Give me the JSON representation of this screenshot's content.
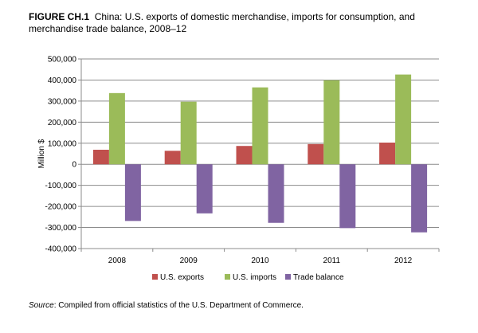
{
  "title": {
    "prefix": "FIGURE CH.1",
    "text": "China: U.S. exports of domestic merchandise, imports for consumption, and merchandise trade balance, 2008–12"
  },
  "source": {
    "label": "Source",
    "text": ": Compiled from official statistics of the U.S. Department of Commerce."
  },
  "chart_data": {
    "type": "bar",
    "title": "China: U.S. exports of domestic merchandise, imports for consumption, and merchandise trade balance, 2008–12",
    "xlabel": "",
    "ylabel": "Million $",
    "categories": [
      "2008",
      "2009",
      "2010",
      "2011",
      "2012"
    ],
    "series": [
      {
        "name": "U.S. exports",
        "color": "#C0504D",
        "values": [
          69000,
          64000,
          87000,
          96000,
          103000
        ]
      },
      {
        "name": "U.S. imports",
        "color": "#9BBB59",
        "values": [
          338000,
          297000,
          365000,
          399000,
          426000
        ]
      },
      {
        "name": "Trade balance",
        "color": "#8064A2",
        "values": [
          -269000,
          -233000,
          -278000,
          -303000,
          -323000
        ]
      }
    ],
    "ylim": [
      -400000,
      500000
    ],
    "yticks": [
      -400000,
      -300000,
      -200000,
      -100000,
      0,
      100000,
      200000,
      300000,
      400000,
      500000
    ],
    "ytick_labels": [
      "-400,000",
      "-300,000",
      "-200,000",
      "-100,000",
      "0",
      "100,000",
      "200,000",
      "300,000",
      "400,000",
      "500,000"
    ],
    "grid": true,
    "legend": "bottom"
  }
}
